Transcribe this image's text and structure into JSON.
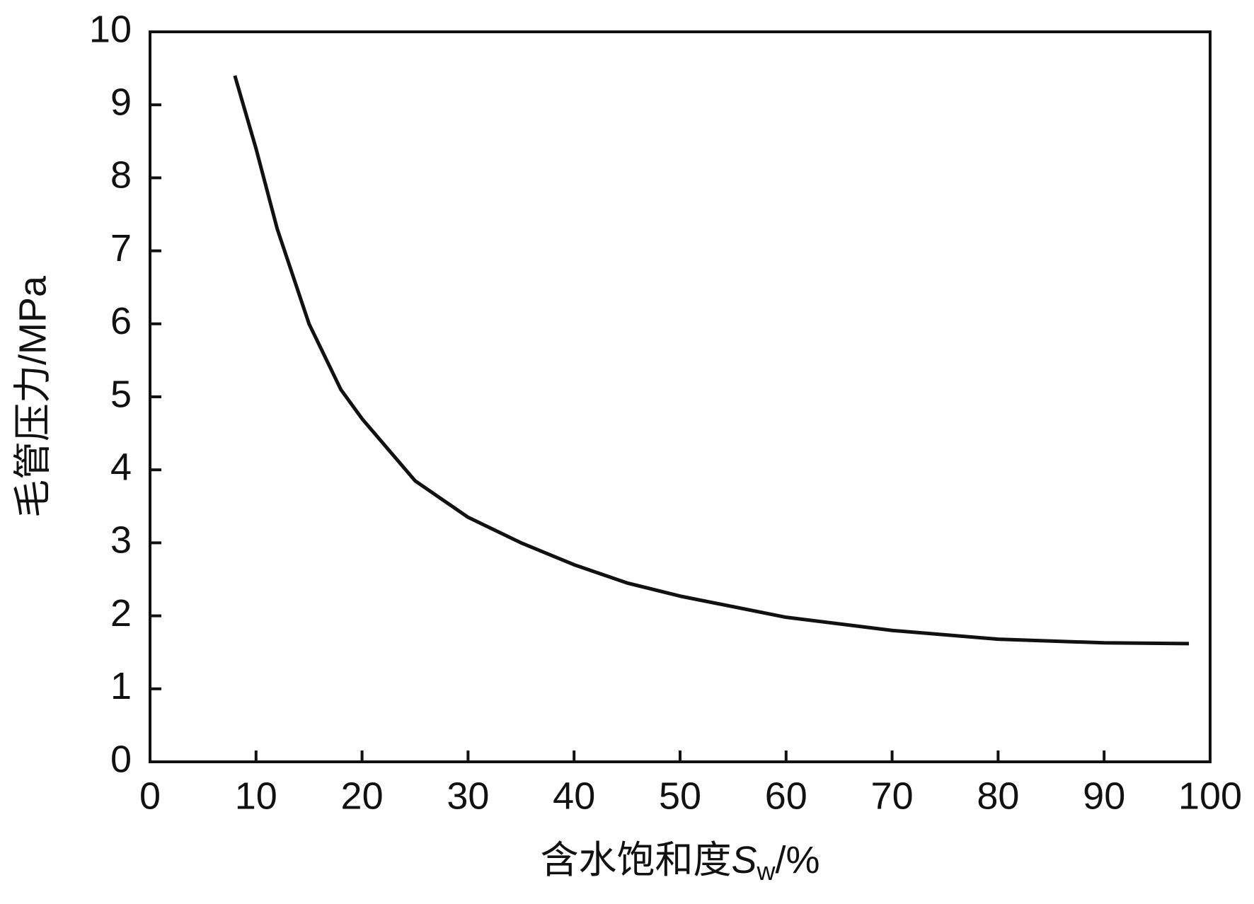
{
  "chart_data": {
    "type": "line",
    "xlabel": {
      "main": "含水饱和度",
      "symbol": "S",
      "subscript": "w",
      "unit": "/%"
    },
    "ylabel": "毛管压力/MPa",
    "x": [
      8,
      10,
      12,
      15,
      18,
      20,
      25,
      30,
      35,
      40,
      45,
      50,
      60,
      70,
      80,
      90,
      98
    ],
    "series": [
      {
        "color": "#111111",
        "values": [
          9.4,
          8.4,
          7.3,
          6.0,
          5.1,
          4.7,
          3.85,
          3.35,
          3.0,
          2.7,
          2.45,
          2.27,
          1.98,
          1.8,
          1.68,
          1.63,
          1.62
        ]
      }
    ],
    "xlim": [
      0,
      100
    ],
    "xticks": [
      0,
      10,
      20,
      30,
      40,
      50,
      60,
      70,
      80,
      90,
      100
    ],
    "ylim": [
      0,
      10
    ],
    "yticks": [
      0,
      1,
      2,
      3,
      4,
      5,
      6,
      7,
      8,
      9,
      10
    ]
  }
}
